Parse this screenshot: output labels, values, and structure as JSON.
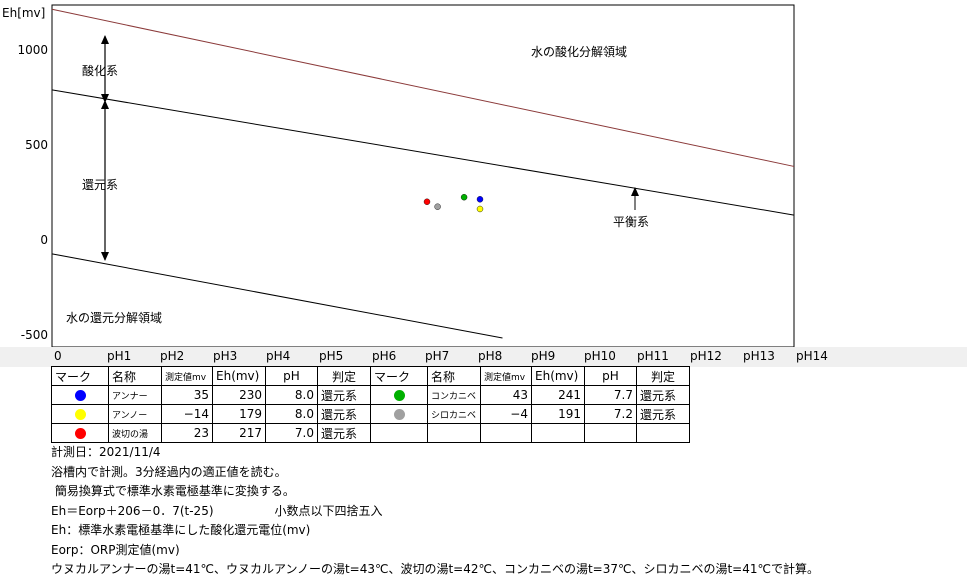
{
  "chart_data": {
    "type": "scatter",
    "ylabel": "Eh[mv]",
    "yticks": [
      1000,
      500,
      0,
      -500
    ],
    "xticks": [
      "0",
      "pH1",
      "pH2",
      "pH3",
      "pH4",
      "pH5",
      "pH6",
      "pH7",
      "pH8",
      "pH9",
      "pH10",
      "pH11",
      "pH12",
      "pH13",
      "pH14"
    ],
    "xlim": [
      0,
      14
    ],
    "ylim": [
      -500,
      1230
    ],
    "lines": [
      {
        "name": "oxidation-limit",
        "x": [
          0,
          14
        ],
        "y": [
          1230,
          403
        ],
        "color": "#8b3a3a"
      },
      {
        "name": "equilibrium",
        "x": [
          0,
          14
        ],
        "y": [
          806,
          147
        ],
        "color": "#000000"
      },
      {
        "name": "reduction-limit",
        "x": [
          0,
          8.5
        ],
        "y": [
          -57,
          -500
        ],
        "color": "#000000"
      }
    ],
    "points": [
      {
        "label": "アンナー",
        "x": 8.0,
        "y": 230,
        "color": "#0000ff"
      },
      {
        "label": "アンノー",
        "x": 8.0,
        "y": 179,
        "color": "#ffff00"
      },
      {
        "label": "波切の湯",
        "x": 7.0,
        "y": 217,
        "color": "#ff0000"
      },
      {
        "label": "コンカニベ",
        "x": 7.7,
        "y": 241,
        "color": "#00b000"
      },
      {
        "label": "シロカニベ",
        "x": 7.2,
        "y": 191,
        "color": "#a0a0a0"
      }
    ],
    "annotations": {
      "oxidation_region": "水の酸化分解領域",
      "reduction_region": "水の還元分解領域",
      "oxidizing": "酸化系",
      "reducing": "還元系",
      "equilibrium": "平衡系"
    }
  },
  "table": {
    "headers": [
      "マーク",
      "名称",
      "測定値mv",
      "Eh(mv)",
      "pH",
      "判定",
      "マーク",
      "名称",
      "測定値mv",
      "Eh(mv)",
      "pH",
      "判定"
    ],
    "rows": [
      {
        "lcolor": "#0000ff",
        "lname": "アンナー",
        "lmeas": "35",
        "leh": "230",
        "lph": "8.0",
        "lj": "還元系",
        "rcolor": "#00b000",
        "rname": "コンカニベ",
        "rmeas": "43",
        "reh": "241",
        "rph": "7.7",
        "rj": "還元系"
      },
      {
        "lcolor": "#ffff00",
        "lname": "アンノー",
        "lmeas": "−14",
        "leh": "179",
        "lph": "8.0",
        "lj": "還元系",
        "rcolor": "#a0a0a0",
        "rname": "シロカニベ",
        "rmeas": "−4",
        "reh": "191",
        "rph": "7.2",
        "rj": "還元系"
      },
      {
        "lcolor": "#ff0000",
        "lname": "波切の湯",
        "lmeas": "23",
        "leh": "217",
        "lph": "7.0",
        "lj": "還元系",
        "rcolor": "",
        "rname": "",
        "rmeas": "",
        "reh": "",
        "rph": "",
        "rj": ""
      }
    ]
  },
  "notes": [
    "計測日：2021/11/4",
    "浴槽内で計測。3分経過内の適正値を読む。",
    " 簡易換算式で標準水素電極基準に変換する。",
    "Eh＝Eorp＋206－0．7(t-25)                小数点以下四捨五入",
    "Eh：標準水素電極基準にした酸化還元電位(mv)",
    "Eorp：ORP測定値(mv)",
    "ウヌカルアンナーの湯t=41℃、ウヌカルアンノーの湯t=43℃、波切の湯t=42℃、コンカニベの湯t=37℃、シロカニベの湯t=41℃で計算。"
  ]
}
